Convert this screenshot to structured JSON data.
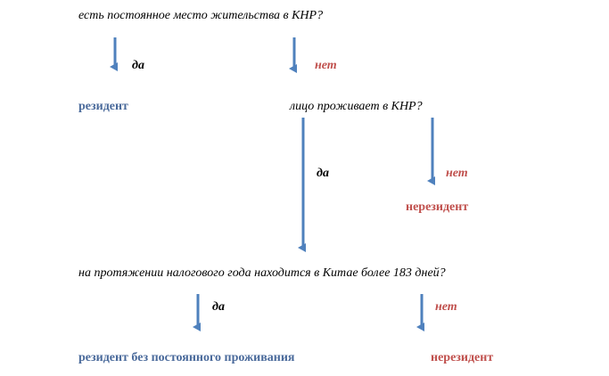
{
  "colors": {
    "arrow": "#4f81bd",
    "resident": "#4a6a9b",
    "nonresident": "#c0504d"
  },
  "question1": "есть постоянное место жительства в КНР?",
  "q1_yes": "да",
  "q1_no": "нет",
  "q1_yes_result": "резидент",
  "question2": "лицо проживает в КНР?",
  "q2_yes": "да",
  "q2_no": "нет",
  "q2_no_result": "нерезидент",
  "question3": "на протяжении налогового года находится в Китае более 183 дней?",
  "q3_yes": "да",
  "q3_no": "нет",
  "q3_yes_result": "резидент без постоянного проживания",
  "q3_no_result": "нерезидент"
}
